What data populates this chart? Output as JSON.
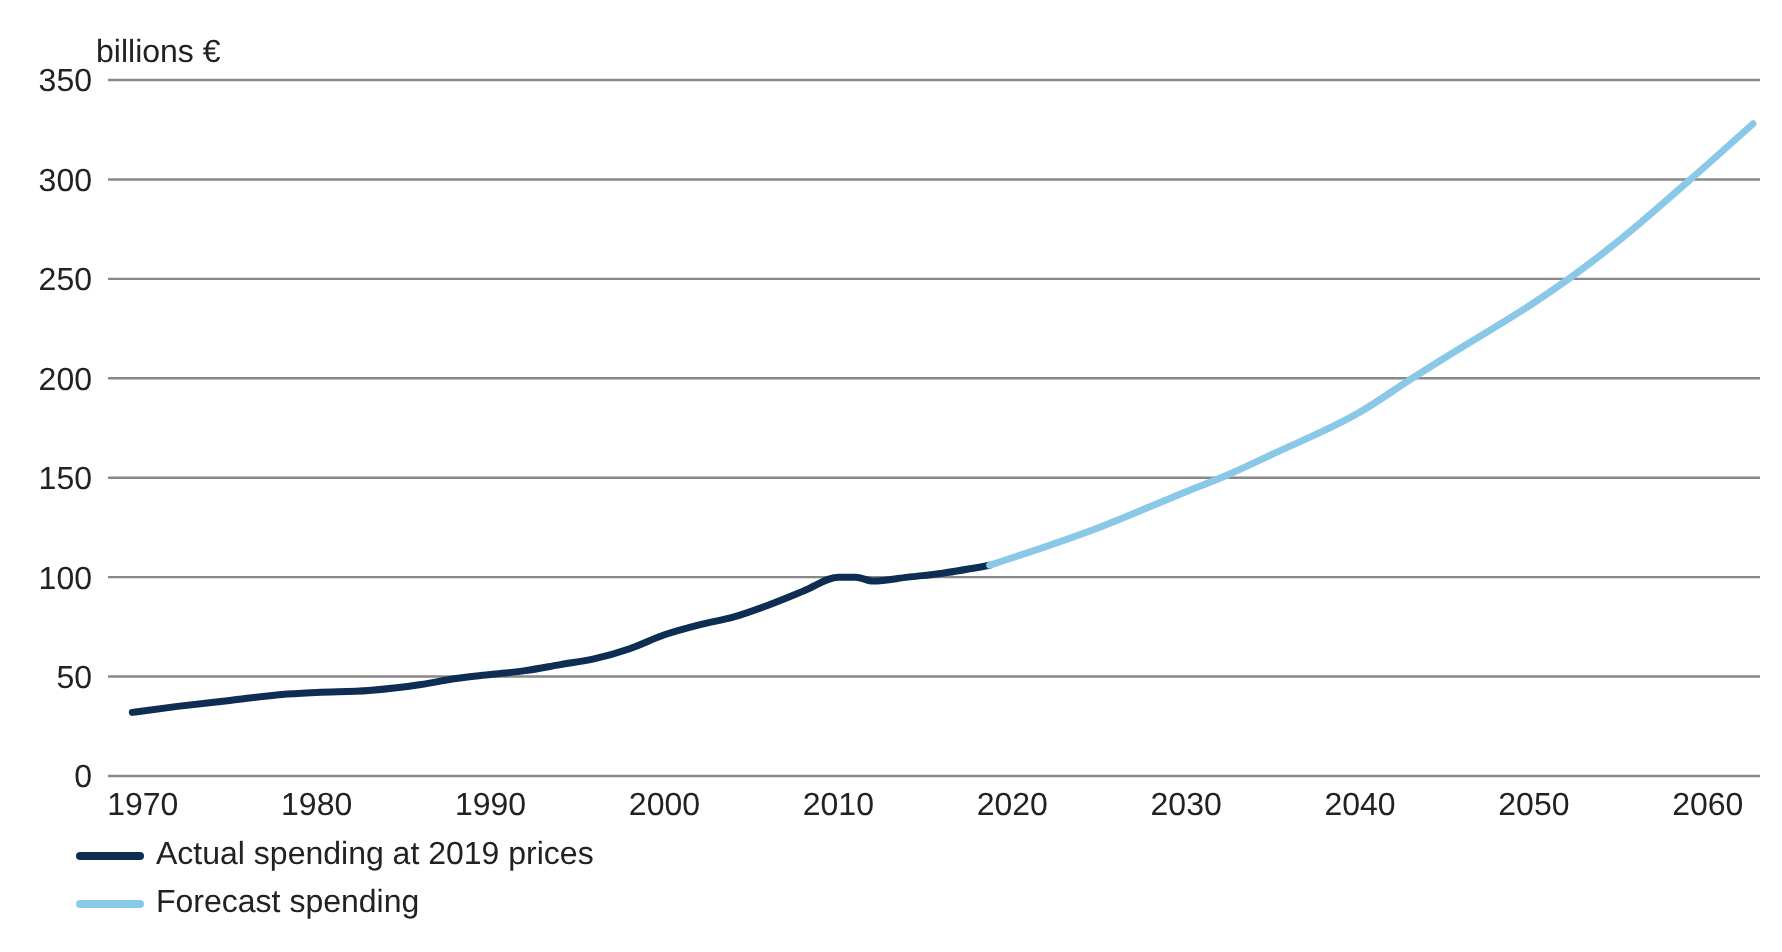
{
  "chart_data": {
    "type": "line",
    "ylabel": "billions €",
    "xlim": [
      1968,
      2063
    ],
    "xticks": [
      1970,
      1980,
      1990,
      2000,
      2010,
      2020,
      2030,
      2040,
      2050,
      2060
    ],
    "ylim": [
      0,
      350
    ],
    "yticks": [
      0,
      50,
      100,
      150,
      200,
      250,
      300,
      350
    ],
    "grid": "y",
    "legend": "bottom left",
    "line_style": "solid",
    "marker": "none",
    "series": [
      {
        "name": "Actual spending at 2019 prices",
        "color": "#0d2d52",
        "x": [
          1969.4,
          1972,
          1975,
          1978,
          1980,
          1983,
          1986,
          1988,
          1990,
          1992,
          1994,
          1996,
          1998,
          2000,
          2002,
          2004,
          2006,
          2008,
          2010,
          2011,
          2012,
          2014,
          2016,
          2018.7
        ],
        "values": [
          32,
          35,
          38,
          41,
          42,
          43,
          46,
          49,
          51,
          53,
          56,
          59,
          64,
          71,
          76,
          80,
          86,
          93,
          100,
          100,
          98,
          100,
          102,
          106
        ]
      },
      {
        "name": "Forecast spending",
        "color": "#8ac8e8",
        "x": [
          2018.7,
          2025,
          2030,
          2032,
          2035,
          2040,
          2043,
          2045,
          2050,
          2052,
          2055,
          2059,
          2062.6
        ],
        "values": [
          106,
          125,
          143,
          150,
          162,
          183,
          200,
          211,
          238,
          250,
          270,
          300,
          328
        ]
      }
    ]
  }
}
